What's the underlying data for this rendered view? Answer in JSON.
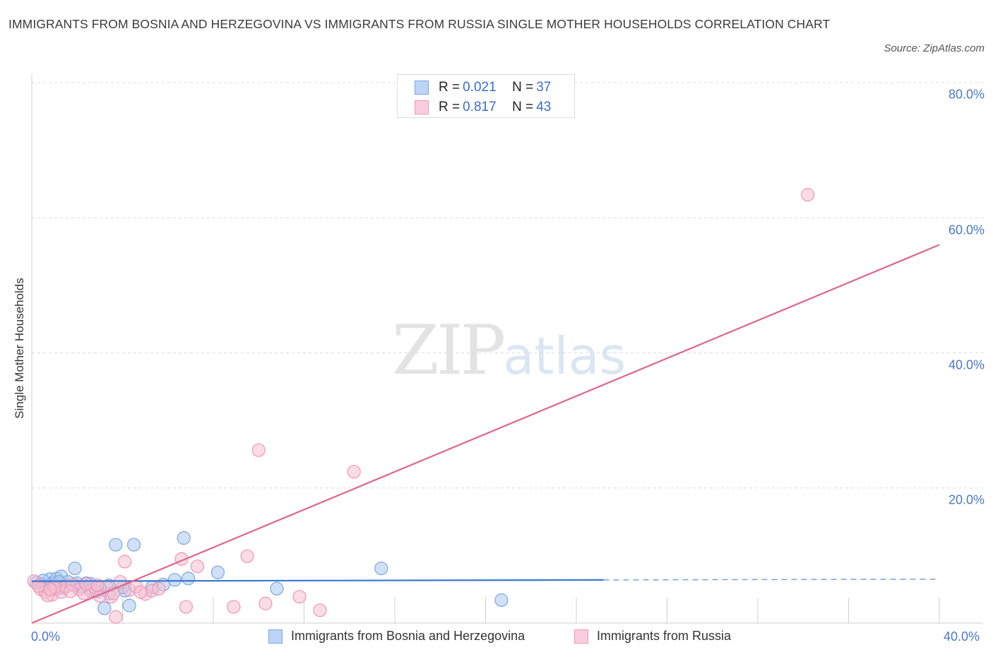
{
  "title": "IMMIGRANTS FROM BOSNIA AND HERZEGOVINA VS IMMIGRANTS FROM RUSSIA SINGLE MOTHER HOUSEHOLDS CORRELATION CHART",
  "source": "Source: ZipAtlas.com",
  "watermark": {
    "zip": "ZIP",
    "atlas": "atlas"
  },
  "legend_stats": [
    {
      "r_label": "R =",
      "r_value": "0.021",
      "n_label": "N =",
      "n_value": "37"
    },
    {
      "r_label": "R =",
      "r_value": "0.817",
      "n_label": "N =",
      "n_value": "43"
    }
  ],
  "chart_data": {
    "type": "scatter",
    "title": "IMMIGRANTS FROM BOSNIA AND HERZEGOVINA VS IMMIGRANTS FROM RUSSIA SINGLE MOTHER HOUSEHOLDS CORRELATION CHART",
    "xlabel": "",
    "ylabel": "Single Mother Households",
    "xlim": [
      0,
      40
    ],
    "ylim": [
      0,
      80
    ],
    "x_tick_labels": [
      "0.0%",
      "40.0%"
    ],
    "y_ticks": [
      20,
      40,
      60,
      80
    ],
    "y_tick_labels": [
      "20.0%",
      "40.0%",
      "60.0%",
      "80.0%"
    ],
    "legend_position": "bottom",
    "series": [
      {
        "name": "Immigrants from Bosnia and Herzegovina",
        "color": "#a9c7ef",
        "stroke": "#7aa6df",
        "line_color": "#3b78d0",
        "R": 0.021,
        "N": 37,
        "trend": {
          "x0": 0,
          "y0": 6.2,
          "x1": 40,
          "y1": 6.5,
          "solid_until": 25.2
        },
        "points": [
          [
            0.2,
            6.0
          ],
          [
            0.4,
            5.8
          ],
          [
            0.6,
            5.5
          ],
          [
            0.8,
            6.5
          ],
          [
            0.9,
            5.9
          ],
          [
            1.1,
            6.6
          ],
          [
            1.3,
            6.9
          ],
          [
            1.6,
            6.1
          ],
          [
            1.9,
            5.6
          ],
          [
            2.2,
            5.4
          ],
          [
            1.9,
            8.1
          ],
          [
            2.6,
            5.8
          ],
          [
            2.9,
            4.7
          ],
          [
            3.2,
            2.2
          ],
          [
            3.4,
            4.4
          ],
          [
            3.7,
            11.6
          ],
          [
            4.1,
            4.8
          ],
          [
            3.4,
            5.6
          ],
          [
            4.3,
            2.6
          ],
          [
            4.5,
            11.6
          ],
          [
            4.0,
            5.3
          ],
          [
            5.3,
            5.3
          ],
          [
            6.3,
            6.4
          ],
          [
            6.7,
            12.6
          ],
          [
            6.9,
            6.6
          ],
          [
            8.2,
            7.5
          ],
          [
            10.8,
            5.1
          ],
          [
            15.4,
            8.1
          ],
          [
            20.7,
            3.4
          ],
          [
            2.4,
            5.9
          ],
          [
            1.4,
            5.2
          ],
          [
            2.7,
            4.9
          ],
          [
            3.0,
            5.2
          ],
          [
            5.8,
            5.7
          ],
          [
            0.5,
            6.3
          ],
          [
            1.2,
            6.1
          ],
          [
            2.0,
            5.9
          ]
        ]
      },
      {
        "name": "Immigrants from Russia",
        "color": "#f6bfd2",
        "stroke": "#ec97b4",
        "line_color": "#e0648f",
        "R": 0.817,
        "N": 43,
        "trend": {
          "x0": 0,
          "y0": 0.0,
          "x1": 40,
          "y1": 56.0
        },
        "points": [
          [
            0.1,
            6.2
          ],
          [
            0.4,
            5.0
          ],
          [
            0.6,
            4.6
          ],
          [
            0.9,
            4.2
          ],
          [
            1.1,
            5.1
          ],
          [
            1.3,
            4.6
          ],
          [
            1.5,
            5.4
          ],
          [
            1.8,
            5.7
          ],
          [
            2.1,
            5.0
          ],
          [
            2.3,
            4.4
          ],
          [
            2.6,
            4.8
          ],
          [
            2.8,
            5.2
          ],
          [
            3.0,
            4.0
          ],
          [
            3.3,
            5.4
          ],
          [
            3.5,
            3.9
          ],
          [
            3.7,
            0.9
          ],
          [
            3.9,
            6.1
          ],
          [
            4.1,
            9.1
          ],
          [
            4.3,
            4.9
          ],
          [
            4.6,
            5.4
          ],
          [
            5.0,
            4.3
          ],
          [
            5.3,
            4.8
          ],
          [
            5.6,
            5.1
          ],
          [
            6.6,
            9.5
          ],
          [
            6.8,
            2.4
          ],
          [
            7.3,
            8.4
          ],
          [
            8.9,
            2.4
          ],
          [
            9.5,
            9.9
          ],
          [
            10.0,
            25.6
          ],
          [
            10.3,
            2.9
          ],
          [
            11.8,
            3.9
          ],
          [
            12.7,
            1.9
          ],
          [
            14.2,
            22.4
          ],
          [
            34.2,
            63.4
          ],
          [
            1.7,
            4.7
          ],
          [
            0.3,
            5.5
          ],
          [
            0.7,
            4.1
          ],
          [
            2.4,
            5.8
          ],
          [
            4.8,
            4.6
          ],
          [
            1.0,
            5.3
          ],
          [
            2.9,
            5.6
          ],
          [
            3.6,
            4.4
          ],
          [
            0.8,
            5.0
          ]
        ]
      }
    ]
  }
}
